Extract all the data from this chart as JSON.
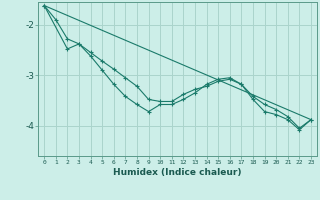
{
  "background_color": "#cceee8",
  "grid_color": "#aad4cc",
  "line_color": "#1a7a6a",
  "xlabel": "Humidex (Indice chaleur)",
  "yticks": [
    -4,
    -3,
    -2
  ],
  "xlim": [
    -0.5,
    23.5
  ],
  "ylim": [
    -4.6,
    -1.55
  ],
  "series1_x": [
    0,
    1,
    2,
    3,
    4,
    5,
    6,
    7,
    8,
    9,
    10,
    11,
    12,
    13,
    14,
    15,
    16,
    17,
    18,
    19,
    20,
    21,
    22,
    23
  ],
  "series1_y": [
    -1.62,
    -1.9,
    -2.28,
    -2.38,
    -2.55,
    -2.72,
    -2.88,
    -3.05,
    -3.22,
    -3.48,
    -3.52,
    -3.52,
    -3.38,
    -3.28,
    -3.22,
    -3.12,
    -3.08,
    -3.18,
    -3.42,
    -3.58,
    -3.68,
    -3.82,
    -4.05,
    -3.88
  ],
  "series2_x": [
    0,
    2,
    3,
    4,
    5,
    6,
    7,
    8,
    9,
    10,
    11,
    12,
    13,
    14,
    15,
    16,
    17,
    18,
    19,
    20,
    21,
    22,
    23
  ],
  "series2_y": [
    -1.62,
    -2.48,
    -2.38,
    -2.62,
    -2.9,
    -3.18,
    -3.42,
    -3.58,
    -3.72,
    -3.58,
    -3.58,
    -3.48,
    -3.35,
    -3.18,
    -3.08,
    -3.05,
    -3.18,
    -3.48,
    -3.72,
    -3.78,
    -3.88,
    -4.08,
    -3.88
  ],
  "series3_x": [
    0,
    23
  ],
  "series3_y": [
    -1.62,
    -3.88
  ],
  "xtick_labels": [
    "0",
    "1",
    "2",
    "3",
    "4",
    "5",
    "6",
    "7",
    "8",
    "9",
    "10",
    "11",
    "12",
    "13",
    "14",
    "15",
    "16",
    "17",
    "18",
    "19",
    "20",
    "21",
    "22",
    "23"
  ]
}
